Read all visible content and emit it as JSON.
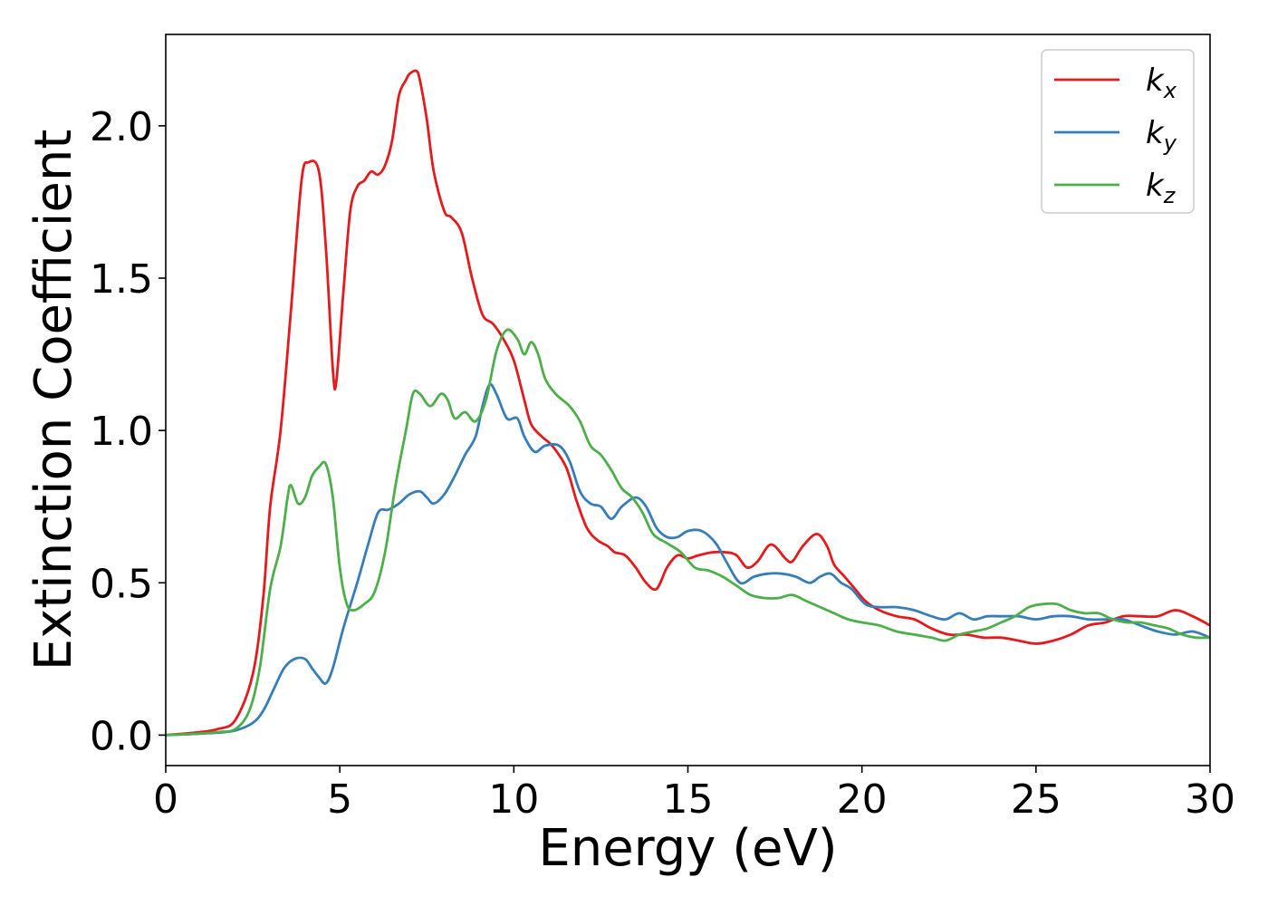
{
  "chart_data": {
    "type": "line",
    "title": "",
    "xlabel": "Energy (eV)",
    "ylabel": "Extinction Coefficient",
    "xlim": [
      0,
      30
    ],
    "ylim": [
      -0.1,
      2.3
    ],
    "x_ticks": [
      0,
      5,
      10,
      15,
      20,
      25,
      30
    ],
    "x_tick_labels": [
      "0",
      "5",
      "10",
      "15",
      "20",
      "25",
      "30"
    ],
    "y_ticks": [
      0.0,
      0.5,
      1.0,
      1.5,
      2.0
    ],
    "y_tick_labels": [
      "0.0",
      "0.5",
      "1.0",
      "1.5",
      "2.0"
    ],
    "grid": false,
    "legend_position": "top-right",
    "series": [
      {
        "name": "k",
        "subscript": "x",
        "color": "#e41a1c",
        "points": [
          [
            0,
            0
          ],
          [
            1,
            0.01
          ],
          [
            1.5,
            0.02
          ],
          [
            2,
            0.05
          ],
          [
            2.5,
            0.2
          ],
          [
            2.8,
            0.45
          ],
          [
            3,
            0.75
          ],
          [
            3.3,
            1.0
          ],
          [
            3.6,
            1.4
          ],
          [
            3.9,
            1.82
          ],
          [
            4.1,
            1.88
          ],
          [
            4.4,
            1.85
          ],
          [
            4.6,
            1.6
          ],
          [
            4.8,
            1.2
          ],
          [
            4.9,
            1.16
          ],
          [
            5.1,
            1.45
          ],
          [
            5.3,
            1.72
          ],
          [
            5.5,
            1.8
          ],
          [
            5.7,
            1.82
          ],
          [
            5.9,
            1.85
          ],
          [
            6.1,
            1.84
          ],
          [
            6.3,
            1.87
          ],
          [
            6.5,
            1.95
          ],
          [
            6.7,
            2.1
          ],
          [
            6.9,
            2.15
          ],
          [
            7.0,
            2.17
          ],
          [
            7.2,
            2.18
          ],
          [
            7.3,
            2.15
          ],
          [
            7.5,
            2.02
          ],
          [
            7.7,
            1.85
          ],
          [
            8.0,
            1.72
          ],
          [
            8.2,
            1.7
          ],
          [
            8.5,
            1.65
          ],
          [
            8.8,
            1.5
          ],
          [
            9.1,
            1.38
          ],
          [
            9.4,
            1.35
          ],
          [
            9.7,
            1.3
          ],
          [
            10.0,
            1.23
          ],
          [
            10.3,
            1.1
          ],
          [
            10.5,
            1.02
          ],
          [
            10.8,
            0.98
          ],
          [
            11.1,
            0.95
          ],
          [
            11.5,
            0.88
          ],
          [
            11.8,
            0.77
          ],
          [
            12.1,
            0.68
          ],
          [
            12.4,
            0.64
          ],
          [
            12.7,
            0.62
          ],
          [
            12.9,
            0.6
          ],
          [
            13.2,
            0.59
          ],
          [
            13.5,
            0.55
          ],
          [
            13.8,
            0.5
          ],
          [
            14.1,
            0.48
          ],
          [
            14.4,
            0.55
          ],
          [
            14.7,
            0.59
          ],
          [
            15.0,
            0.58
          ],
          [
            15.3,
            0.59
          ],
          [
            15.7,
            0.6
          ],
          [
            16.1,
            0.6
          ],
          [
            16.4,
            0.59
          ],
          [
            16.7,
            0.55
          ],
          [
            17.0,
            0.57
          ],
          [
            17.3,
            0.62
          ],
          [
            17.5,
            0.62
          ],
          [
            17.8,
            0.58
          ],
          [
            18.0,
            0.57
          ],
          [
            18.3,
            0.62
          ],
          [
            18.7,
            0.66
          ],
          [
            19.0,
            0.62
          ],
          [
            19.2,
            0.56
          ],
          [
            19.5,
            0.52
          ],
          [
            19.8,
            0.48
          ],
          [
            20.1,
            0.44
          ],
          [
            20.5,
            0.41
          ],
          [
            21.0,
            0.39
          ],
          [
            21.5,
            0.38
          ],
          [
            22.0,
            0.35
          ],
          [
            22.5,
            0.33
          ],
          [
            23.0,
            0.33
          ],
          [
            23.5,
            0.32
          ],
          [
            24.0,
            0.32
          ],
          [
            24.5,
            0.31
          ],
          [
            25.0,
            0.3
          ],
          [
            25.5,
            0.31
          ],
          [
            26.0,
            0.33
          ],
          [
            26.5,
            0.36
          ],
          [
            27.0,
            0.37
          ],
          [
            27.5,
            0.39
          ],
          [
            28.0,
            0.39
          ],
          [
            28.5,
            0.39
          ],
          [
            29.0,
            0.41
          ],
          [
            29.5,
            0.39
          ],
          [
            30.0,
            0.36
          ]
        ]
      },
      {
        "name": "k",
        "subscript": "y",
        "color": "#377eb8",
        "points": [
          [
            0,
            0
          ],
          [
            1,
            0.005
          ],
          [
            1.5,
            0.008
          ],
          [
            2,
            0.015
          ],
          [
            2.5,
            0.04
          ],
          [
            2.8,
            0.08
          ],
          [
            3.1,
            0.15
          ],
          [
            3.4,
            0.22
          ],
          [
            3.7,
            0.25
          ],
          [
            4.0,
            0.25
          ],
          [
            4.2,
            0.22
          ],
          [
            4.4,
            0.19
          ],
          [
            4.6,
            0.17
          ],
          [
            4.8,
            0.22
          ],
          [
            5.1,
            0.35
          ],
          [
            5.5,
            0.5
          ],
          [
            5.8,
            0.62
          ],
          [
            6.1,
            0.73
          ],
          [
            6.4,
            0.74
          ],
          [
            6.7,
            0.76
          ],
          [
            7.0,
            0.79
          ],
          [
            7.3,
            0.8
          ],
          [
            7.5,
            0.78
          ],
          [
            7.7,
            0.76
          ],
          [
            8.0,
            0.79
          ],
          [
            8.3,
            0.85
          ],
          [
            8.6,
            0.92
          ],
          [
            8.9,
            0.98
          ],
          [
            9.1,
            1.08
          ],
          [
            9.3,
            1.15
          ],
          [
            9.5,
            1.12
          ],
          [
            9.8,
            1.04
          ],
          [
            10.1,
            1.04
          ],
          [
            10.3,
            0.98
          ],
          [
            10.6,
            0.93
          ],
          [
            10.9,
            0.95
          ],
          [
            11.3,
            0.95
          ],
          [
            11.6,
            0.9
          ],
          [
            11.9,
            0.8
          ],
          [
            12.2,
            0.76
          ],
          [
            12.5,
            0.75
          ],
          [
            12.8,
            0.71
          ],
          [
            13.1,
            0.75
          ],
          [
            13.5,
            0.78
          ],
          [
            13.8,
            0.75
          ],
          [
            14.1,
            0.68
          ],
          [
            14.4,
            0.65
          ],
          [
            14.7,
            0.65
          ],
          [
            15.0,
            0.67
          ],
          [
            15.4,
            0.67
          ],
          [
            15.8,
            0.63
          ],
          [
            16.1,
            0.57
          ],
          [
            16.5,
            0.5
          ],
          [
            16.9,
            0.52
          ],
          [
            17.3,
            0.53
          ],
          [
            17.7,
            0.53
          ],
          [
            18.1,
            0.52
          ],
          [
            18.5,
            0.5
          ],
          [
            18.8,
            0.52
          ],
          [
            19.1,
            0.53
          ],
          [
            19.4,
            0.5
          ],
          [
            19.7,
            0.48
          ],
          [
            20.1,
            0.43
          ],
          [
            20.5,
            0.42
          ],
          [
            21.0,
            0.42
          ],
          [
            21.5,
            0.41
          ],
          [
            22.0,
            0.39
          ],
          [
            22.4,
            0.38
          ],
          [
            22.8,
            0.4
          ],
          [
            23.2,
            0.38
          ],
          [
            23.6,
            0.39
          ],
          [
            24.0,
            0.39
          ],
          [
            24.5,
            0.39
          ],
          [
            25.0,
            0.38
          ],
          [
            25.5,
            0.39
          ],
          [
            26.0,
            0.39
          ],
          [
            26.5,
            0.38
          ],
          [
            27.0,
            0.38
          ],
          [
            27.5,
            0.38
          ],
          [
            28.0,
            0.36
          ],
          [
            28.5,
            0.34
          ],
          [
            29.0,
            0.33
          ],
          [
            29.5,
            0.34
          ],
          [
            30.0,
            0.32
          ]
        ]
      },
      {
        "name": "k",
        "subscript": "z",
        "color": "#4daf4a",
        "points": [
          [
            0,
            0
          ],
          [
            1,
            0.005
          ],
          [
            1.5,
            0.01
          ],
          [
            2,
            0.02
          ],
          [
            2.4,
            0.08
          ],
          [
            2.7,
            0.22
          ],
          [
            3.0,
            0.48
          ],
          [
            3.3,
            0.62
          ],
          [
            3.5,
            0.78
          ],
          [
            3.6,
            0.82
          ],
          [
            3.8,
            0.76
          ],
          [
            4.0,
            0.78
          ],
          [
            4.2,
            0.85
          ],
          [
            4.4,
            0.88
          ],
          [
            4.6,
            0.89
          ],
          [
            4.8,
            0.78
          ],
          [
            5.0,
            0.55
          ],
          [
            5.2,
            0.43
          ],
          [
            5.4,
            0.41
          ],
          [
            5.7,
            0.43
          ],
          [
            6.0,
            0.47
          ],
          [
            6.3,
            0.6
          ],
          [
            6.6,
            0.82
          ],
          [
            6.9,
            1.0
          ],
          [
            7.1,
            1.12
          ],
          [
            7.3,
            1.12
          ],
          [
            7.6,
            1.08
          ],
          [
            7.9,
            1.12
          ],
          [
            8.1,
            1.1
          ],
          [
            8.3,
            1.04
          ],
          [
            8.6,
            1.06
          ],
          [
            8.9,
            1.03
          ],
          [
            9.2,
            1.1
          ],
          [
            9.5,
            1.26
          ],
          [
            9.8,
            1.33
          ],
          [
            10.1,
            1.3
          ],
          [
            10.3,
            1.25
          ],
          [
            10.5,
            1.29
          ],
          [
            10.7,
            1.25
          ],
          [
            10.9,
            1.17
          ],
          [
            11.2,
            1.12
          ],
          [
            11.6,
            1.08
          ],
          [
            11.9,
            1.03
          ],
          [
            12.2,
            0.95
          ],
          [
            12.5,
            0.92
          ],
          [
            12.8,
            0.87
          ],
          [
            13.1,
            0.81
          ],
          [
            13.4,
            0.78
          ],
          [
            13.7,
            0.73
          ],
          [
            14.0,
            0.66
          ],
          [
            14.4,
            0.63
          ],
          [
            14.8,
            0.6
          ],
          [
            15.2,
            0.55
          ],
          [
            15.6,
            0.54
          ],
          [
            16.0,
            0.52
          ],
          [
            16.4,
            0.49
          ],
          [
            16.8,
            0.46
          ],
          [
            17.2,
            0.45
          ],
          [
            17.6,
            0.45
          ],
          [
            18.0,
            0.46
          ],
          [
            18.4,
            0.44
          ],
          [
            18.8,
            0.42
          ],
          [
            19.2,
            0.4
          ],
          [
            19.6,
            0.38
          ],
          [
            20.0,
            0.37
          ],
          [
            20.5,
            0.36
          ],
          [
            21.0,
            0.34
          ],
          [
            21.5,
            0.33
          ],
          [
            22.0,
            0.32
          ],
          [
            22.4,
            0.31
          ],
          [
            22.8,
            0.33
          ],
          [
            23.2,
            0.34
          ],
          [
            23.6,
            0.35
          ],
          [
            24.0,
            0.37
          ],
          [
            24.4,
            0.39
          ],
          [
            24.8,
            0.42
          ],
          [
            25.2,
            0.43
          ],
          [
            25.6,
            0.43
          ],
          [
            26.0,
            0.41
          ],
          [
            26.4,
            0.4
          ],
          [
            26.8,
            0.4
          ],
          [
            27.2,
            0.38
          ],
          [
            27.6,
            0.37
          ],
          [
            28.0,
            0.37
          ],
          [
            28.4,
            0.36
          ],
          [
            28.8,
            0.35
          ],
          [
            29.2,
            0.33
          ],
          [
            29.6,
            0.32
          ],
          [
            30.0,
            0.32
          ]
        ]
      }
    ]
  }
}
